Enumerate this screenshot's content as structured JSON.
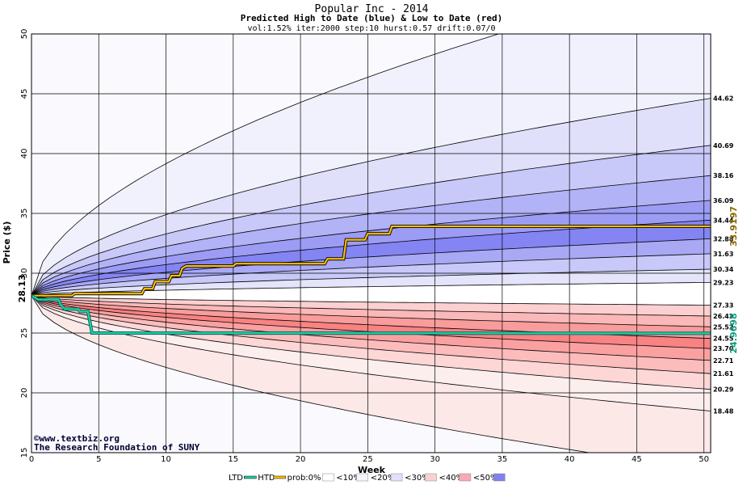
{
  "chart_data": {
    "type": "area",
    "title": "Popular Inc - 2014",
    "subtitle": "Predicted High to Date (blue) &  Low to Date (red)",
    "params": "vol:1.52% iter:2000 step:10 hurst:0.57 drift:0.07/0",
    "xlabel": "Week",
    "ylabel": "Price ($)",
    "xlim": [
      0,
      50.5
    ],
    "ylim": [
      15,
      50
    ],
    "xticks": [
      "0",
      "5",
      "10",
      "15",
      "20",
      "25",
      "30",
      "35",
      "40",
      "45",
      "50"
    ],
    "yticks": [
      "15",
      "20",
      "25",
      "30",
      "35",
      "40",
      "45",
      "50"
    ],
    "start_price": 28.13,
    "start_price_label": "28.13",
    "grid": true,
    "high_quantiles": [
      {
        "label": "44.62",
        "end": 44.62,
        "fill": "#f1f1fd"
      },
      {
        "label": "40.69",
        "end": 40.69,
        "fill": "#e0e0fb"
      },
      {
        "label": "38.16",
        "end": 38.16,
        "fill": "#c8c8f9"
      },
      {
        "label": "36.09",
        "end": 36.09,
        "fill": "#b2b2f7"
      },
      {
        "label": "34.44",
        "end": 34.44,
        "fill": "#9c9cf5"
      },
      {
        "label": "32.88",
        "end": 32.88,
        "fill": "#8484f3"
      },
      {
        "label": "31.63",
        "end": 31.63,
        "fill": "#a8a8f5"
      },
      {
        "label": "30.34",
        "end": 30.34,
        "fill": "#c8c8f9"
      },
      {
        "label": "29.23",
        "end": 29.23,
        "fill": "#e4e4fb"
      }
    ],
    "high_outer_end": 55.0,
    "low_quantiles": [
      {
        "label": "27.33",
        "end": 27.33,
        "fill": "#fde8e8"
      },
      {
        "label": "26.42",
        "end": 26.42,
        "fill": "#fcd0d0"
      },
      {
        "label": "25.52",
        "end": 25.52,
        "fill": "#fbb8b8"
      },
      {
        "label": "24.55",
        "end": 24.55,
        "fill": "#f99c9c"
      },
      {
        "label": "23.70",
        "end": 23.7,
        "fill": "#f98282"
      },
      {
        "label": "22.71",
        "end": 22.71,
        "fill": "#fba0a0"
      },
      {
        "label": "21.61",
        "end": 21.61,
        "fill": "#fcbcbc"
      },
      {
        "label": "20.29",
        "end": 20.29,
        "fill": "#fdd6d6"
      },
      {
        "label": "18.48",
        "end": 18.48,
        "fill": "#fdeeee"
      }
    ],
    "low_outer_end": 13.5,
    "htd": {
      "label": "33.9197",
      "final": 33.9197,
      "color": "#ffc000",
      "points": [
        [
          0,
          28.13
        ],
        [
          3,
          28.13
        ],
        [
          3.2,
          28.3
        ],
        [
          8.2,
          28.3
        ],
        [
          8.4,
          28.7
        ],
        [
          9,
          28.7
        ],
        [
          9.2,
          29.3
        ],
        [
          10.2,
          29.3
        ],
        [
          10.4,
          29.8
        ],
        [
          11,
          29.8
        ],
        [
          11.2,
          30.4
        ],
        [
          11.5,
          30.6
        ],
        [
          15,
          30.6
        ],
        [
          15.2,
          30.8
        ],
        [
          21.8,
          30.8
        ],
        [
          22,
          31.2
        ],
        [
          23.2,
          31.2
        ],
        [
          23.4,
          32.8
        ],
        [
          24.8,
          32.8
        ],
        [
          25,
          33.3
        ],
        [
          26.6,
          33.3
        ],
        [
          26.8,
          33.92
        ],
        [
          50.5,
          33.92
        ]
      ]
    },
    "ltd": {
      "label": "24.9698",
      "final": 24.9698,
      "color": "#20d0a0",
      "points": [
        [
          0,
          28.13
        ],
        [
          0.5,
          27.8
        ],
        [
          2,
          27.8
        ],
        [
          2.2,
          27.3
        ],
        [
          2.5,
          27.0
        ],
        [
          3.5,
          27.0
        ],
        [
          3.6,
          26.8
        ],
        [
          4.2,
          26.8
        ],
        [
          4.5,
          25.0
        ],
        [
          50.5,
          24.97
        ]
      ]
    },
    "credit_lines": [
      "©www.textbiz.org",
      "The Research Foundation of SUNY"
    ],
    "legend": [
      {
        "label": "LTD",
        "swatch": "line",
        "color": "#20d0a0"
      },
      {
        "label": "HTD",
        "swatch": "line",
        "color": "#ffc000"
      },
      {
        "label": "prob:0%",
        "swatch": "box",
        "color": "#ffffff"
      },
      {
        "label": "<10%",
        "swatch": "box",
        "color": "#f4f4fc"
      },
      {
        "label": "<20%",
        "swatch": "box",
        "color": "#e0e0fb"
      },
      {
        "label": "<30%",
        "swatch": "box",
        "color": "#fbd0d0"
      },
      {
        "label": "<40%",
        "swatch": "box",
        "color": "#f8a8b8"
      },
      {
        "label": "<50%",
        "swatch": "box",
        "color": "#8080f0"
      }
    ]
  }
}
